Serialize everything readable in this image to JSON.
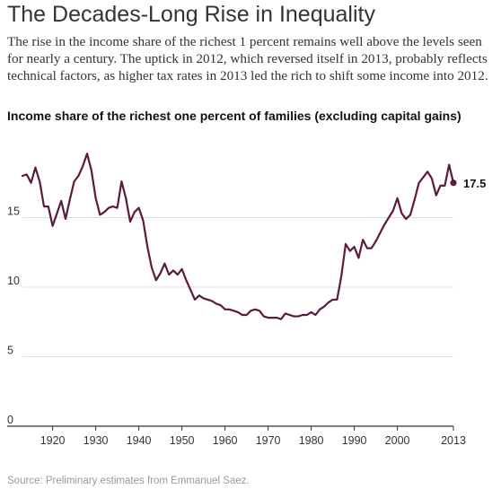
{
  "title": "The Decades-Long Rise in Inequality",
  "subtitle": "The rise in the income share of the richest 1 percent remains well above the levels seen for nearly a century. The uptick in 2012, which reversed itself in 2013, probably reflects technical factors, as higher tax rates in 2013 led the rich to shift some income into 2012.",
  "source": "Source: Preliminary estimates from Emmanuel Saez.",
  "colors": {
    "line": "#5b1a3e",
    "grid": "#dddddd",
    "axis": "#333333"
  },
  "chart_data": {
    "type": "line",
    "title": "Income share of the richest one percent of families (excluding capital gains)",
    "xlabel": "",
    "ylabel": "",
    "xlim": [
      1913,
      2013
    ],
    "ylim": [
      0,
      20
    ],
    "x_ticks": [
      {
        "value": 1920,
        "label": "1920"
      },
      {
        "value": 1930,
        "label": "1930"
      },
      {
        "value": 1940,
        "label": "1940"
      },
      {
        "value": 1950,
        "label": "1950"
      },
      {
        "value": 1960,
        "label": "1960"
      },
      {
        "value": 1970,
        "label": "1970"
      },
      {
        "value": 1980,
        "label": "1980"
      },
      {
        "value": 1990,
        "label": "1990"
      },
      {
        "value": 2000,
        "label": "2000"
      },
      {
        "value": 2013,
        "label": "2013"
      }
    ],
    "y_ticks": [
      {
        "value": 0,
        "label": "0"
      },
      {
        "value": 5,
        "label": "5"
      },
      {
        "value": 10,
        "label": "10"
      },
      {
        "value": 15,
        "label": "15"
      }
    ],
    "grid": true,
    "end_label": {
      "x": 2013,
      "y": 17.5,
      "label": "17.5"
    },
    "series": [
      {
        "x": [
          1913,
          1914,
          1915,
          1916,
          1917,
          1918,
          1919,
          1920,
          1921,
          1922,
          1923,
          1924,
          1925,
          1926,
          1927,
          1928,
          1929,
          1930,
          1931,
          1932,
          1933,
          1934,
          1935,
          1936,
          1937,
          1938,
          1939,
          1940,
          1941,
          1942,
          1943,
          1944,
          1945,
          1946,
          1947,
          1948,
          1949,
          1950,
          1951,
          1952,
          1953,
          1954,
          1955,
          1956,
          1957,
          1958,
          1959,
          1960,
          1961,
          1962,
          1963,
          1964,
          1965,
          1966,
          1967,
          1968,
          1969,
          1970,
          1971,
          1972,
          1973,
          1974,
          1975,
          1976,
          1977,
          1978,
          1979,
          1980,
          1981,
          1982,
          1983,
          1984,
          1985,
          1986,
          1987,
          1988,
          1989,
          1990,
          1991,
          1992,
          1993,
          1994,
          1995,
          1996,
          1997,
          1998,
          1999,
          2000,
          2001,
          2002,
          2003,
          2004,
          2005,
          2006,
          2007,
          2008,
          2009,
          2010,
          2011,
          2012,
          2013
        ],
        "y": [
          18.0,
          18.1,
          17.5,
          18.6,
          17.6,
          15.8,
          15.8,
          14.4,
          15.3,
          16.2,
          14.9,
          16.3,
          17.6,
          18.0,
          18.7,
          19.6,
          18.4,
          16.4,
          15.2,
          15.4,
          15.7,
          15.8,
          15.7,
          17.6,
          16.4,
          14.7,
          15.4,
          15.7,
          14.8,
          12.9,
          11.4,
          10.5,
          11.0,
          11.7,
          10.9,
          11.2,
          10.9,
          11.3,
          10.5,
          9.8,
          9.1,
          9.4,
          9.2,
          9.1,
          9.0,
          8.8,
          8.7,
          8.4,
          8.4,
          8.3,
          8.2,
          8.0,
          8.0,
          8.3,
          8.4,
          8.3,
          7.9,
          7.8,
          7.8,
          7.8,
          7.7,
          8.1,
          8.0,
          7.9,
          7.9,
          8.0,
          8.0,
          8.2,
          8.0,
          8.4,
          8.6,
          8.9,
          9.1,
          9.1,
          10.8,
          13.1,
          12.6,
          12.9,
          12.1,
          13.4,
          12.8,
          12.8,
          13.3,
          13.9,
          14.5,
          15.0,
          15.5,
          16.4,
          15.3,
          14.9,
          15.2,
          16.3,
          17.5,
          17.9,
          18.3,
          17.8,
          16.6,
          17.3,
          17.3,
          18.8,
          17.5
        ]
      }
    ]
  }
}
